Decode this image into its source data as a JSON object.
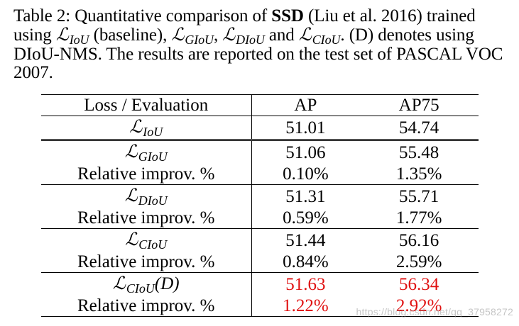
{
  "caption": {
    "prefix": "Table 2: Quantitative comparison of ",
    "model": "SSD",
    "after_model": " (Liu et al. 2016) trained using ",
    "loss_iou_sub": "IoU",
    "baseline_text": " (baseline), ",
    "loss_giou_sub": "GIoU",
    "comma": ", ",
    "loss_diou_sub": "DIoU",
    "and_text": " and ",
    "loss_ciou_sub": "CIoU",
    "suffix": ". (D) denotes using DIoU-NMS. The results are reported on the test set of PASCAL VOC 2007."
  },
  "table": {
    "headers": [
      "Loss / Evaluation",
      "AP",
      "AP75"
    ],
    "baseline": {
      "loss_sub": "IoU",
      "ap": "51.01",
      "ap75": "54.74"
    },
    "groups": [
      {
        "loss_sub": "GIoU",
        "loss_suffix": "",
        "ap": "51.06",
        "ap75": "55.48",
        "rel_label": "Relative improv. %",
        "rel_ap": "0.10%",
        "rel_ap75": "1.35%",
        "style": "normal"
      },
      {
        "loss_sub": "DIoU",
        "loss_suffix": "",
        "ap": "51.31",
        "ap75": "55.71",
        "rel_label": "Relative improv. %",
        "rel_ap": "0.59%",
        "rel_ap75": "1.77%",
        "style": "normal"
      },
      {
        "loss_sub": "CIoU",
        "loss_suffix": "",
        "ap": "51.44",
        "ap75": "56.16",
        "rel_label": "Relative improv. %",
        "rel_ap": "0.84%",
        "rel_ap75": "2.59%",
        "style": "bold"
      },
      {
        "loss_sub": "CIoU",
        "loss_suffix": "(D)",
        "ap": "51.63",
        "ap75": "56.34",
        "rel_label": "Relative improv. %",
        "rel_ap": "1.22%",
        "rel_ap75": "2.92%",
        "style": "bold-red"
      }
    ]
  },
  "watermark": "https://blog.csdn.net/qq_37958272",
  "colors": {
    "highlight": "#e01010",
    "text": "#000000"
  }
}
